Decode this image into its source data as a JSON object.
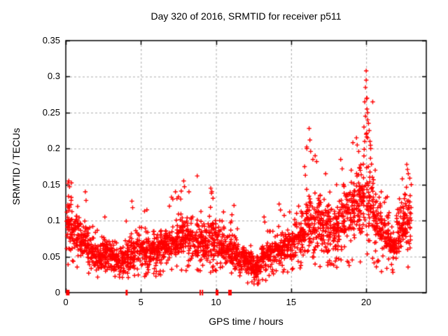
{
  "chart": {
    "title": "Day 320 of 2016, SRMTID for receiver p511",
    "xlabel": "GPS time / hours",
    "ylabel": "SRMTID / TECUs"
  },
  "chart_data": {
    "type": "scatter",
    "title": "Day 320 of 2016, SRMTID for receiver p511",
    "xlabel": "GPS time / hours",
    "ylabel": "SRMTID / TECUs",
    "xlim": [
      0,
      24
    ],
    "ylim": [
      0,
      0.35
    ],
    "xticks": [
      0,
      5,
      10,
      15,
      20
    ],
    "xtick_labels": [
      "0",
      "5",
      "10",
      "15",
      "20"
    ],
    "yticks": [
      0,
      0.05,
      0.1,
      0.15,
      0.2,
      0.25,
      0.3,
      0.35
    ],
    "ytick_labels": [
      "0",
      "0.05",
      "0.1",
      "0.15",
      "0.2",
      "0.25",
      "0.3",
      "0.35"
    ],
    "grid": "dashed, at every major tick, mirrored inward ticks on all four borders",
    "legend": "none",
    "marker": "+",
    "marker_color": "#ff0000",
    "grid_color": "#a9a9a9",
    "border_color": "#000000",
    "background_color": "#ffffff",
    "seed": 42,
    "density_bins_comment": "Each bin approximates the dense scatter cloud: [hourStart, hourEnd, nPoints, minTypical, modeTypical, maxObserved] in TECUs",
    "density_bins": [
      [
        0.05,
        0.4,
        50,
        0.05,
        0.095,
        0.158
      ],
      [
        0.4,
        1.0,
        60,
        0.045,
        0.08,
        0.145
      ],
      [
        1.0,
        1.5,
        55,
        0.035,
        0.065,
        0.12
      ],
      [
        1.5,
        2.0,
        55,
        0.03,
        0.055,
        0.1
      ],
      [
        2.0,
        2.5,
        55,
        0.028,
        0.05,
        0.095
      ],
      [
        2.5,
        3.0,
        55,
        0.028,
        0.052,
        0.105
      ],
      [
        3.0,
        3.5,
        55,
        0.024,
        0.048,
        0.08
      ],
      [
        3.5,
        4.0,
        50,
        0.022,
        0.045,
        0.085
      ],
      [
        4.0,
        4.5,
        50,
        0.028,
        0.05,
        0.1
      ],
      [
        4.5,
        5.0,
        50,
        0.03,
        0.058,
        0.11
      ],
      [
        5.0,
        5.5,
        55,
        0.032,
        0.06,
        0.115
      ],
      [
        5.5,
        6.0,
        50,
        0.03,
        0.055,
        0.09
      ],
      [
        6.0,
        6.5,
        55,
        0.033,
        0.06,
        0.1
      ],
      [
        6.5,
        7.0,
        55,
        0.038,
        0.065,
        0.115
      ],
      [
        7.0,
        7.5,
        55,
        0.04,
        0.07,
        0.14
      ],
      [
        7.5,
        8.0,
        55,
        0.042,
        0.08,
        0.152
      ],
      [
        8.0,
        8.5,
        50,
        0.04,
        0.075,
        0.135
      ],
      [
        8.5,
        9.0,
        50,
        0.038,
        0.068,
        0.12
      ],
      [
        9.0,
        9.5,
        55,
        0.04,
        0.07,
        0.13
      ],
      [
        9.5,
        10.0,
        55,
        0.04,
        0.075,
        0.142
      ],
      [
        10.0,
        10.5,
        50,
        0.038,
        0.065,
        0.11
      ],
      [
        10.5,
        11.0,
        50,
        0.035,
        0.06,
        0.105
      ],
      [
        11.0,
        11.5,
        55,
        0.03,
        0.055,
        0.112
      ],
      [
        11.5,
        12.0,
        55,
        0.025,
        0.045,
        0.08
      ],
      [
        12.0,
        12.5,
        55,
        0.02,
        0.04,
        0.07
      ],
      [
        12.5,
        13.0,
        55,
        0.016,
        0.035,
        0.065
      ],
      [
        13.0,
        13.5,
        55,
        0.025,
        0.05,
        0.098
      ],
      [
        13.5,
        14.0,
        50,
        0.03,
        0.055,
        0.09
      ],
      [
        14.0,
        14.5,
        55,
        0.035,
        0.06,
        0.115
      ],
      [
        14.5,
        15.0,
        55,
        0.038,
        0.065,
        0.108
      ],
      [
        15.0,
        15.5,
        50,
        0.04,
        0.07,
        0.12
      ],
      [
        15.5,
        16.0,
        55,
        0.045,
        0.08,
        0.165
      ],
      [
        16.0,
        16.5,
        55,
        0.05,
        0.1,
        0.205
      ],
      [
        16.5,
        17.0,
        55,
        0.05,
        0.1,
        0.19
      ],
      [
        17.0,
        17.5,
        55,
        0.05,
        0.09,
        0.158
      ],
      [
        17.5,
        18.0,
        50,
        0.05,
        0.088,
        0.15
      ],
      [
        18.0,
        18.5,
        55,
        0.05,
        0.095,
        0.175
      ],
      [
        18.5,
        19.0,
        55,
        0.055,
        0.105,
        0.168
      ],
      [
        19.0,
        19.5,
        55,
        0.06,
        0.115,
        0.21
      ],
      [
        19.5,
        20.0,
        60,
        0.06,
        0.125,
        0.26
      ],
      [
        20.0,
        20.5,
        60,
        0.06,
        0.125,
        0.27
      ],
      [
        20.5,
        21.0,
        55,
        0.05,
        0.1,
        0.168
      ],
      [
        21.0,
        21.5,
        55,
        0.04,
        0.078,
        0.138
      ],
      [
        21.5,
        22.0,
        55,
        0.032,
        0.06,
        0.115
      ],
      [
        22.0,
        22.5,
        55,
        0.04,
        0.088,
        0.155
      ],
      [
        22.5,
        23.0,
        55,
        0.05,
        0.1,
        0.172
      ]
    ],
    "outliers_comment": "Notable individual high points read off the plot: [hour, TECUs]",
    "outliers": [
      [
        0.15,
        0.152
      ],
      [
        0.2,
        0.155
      ],
      [
        0.25,
        0.147
      ],
      [
        1.3,
        0.14
      ],
      [
        1.35,
        0.128
      ],
      [
        2.6,
        0.105
      ],
      [
        4.4,
        0.127
      ],
      [
        4.45,
        0.118
      ],
      [
        5.4,
        0.115
      ],
      [
        6.9,
        0.12
      ],
      [
        7.3,
        0.14
      ],
      [
        7.5,
        0.133
      ],
      [
        7.85,
        0.155
      ],
      [
        7.9,
        0.147
      ],
      [
        8.2,
        0.14
      ],
      [
        8.75,
        0.162
      ],
      [
        9.65,
        0.145
      ],
      [
        9.7,
        0.138
      ],
      [
        9.8,
        0.131
      ],
      [
        10.5,
        0.112
      ],
      [
        11.2,
        0.121
      ],
      [
        13.2,
        0.105
      ],
      [
        13.25,
        0.098
      ],
      [
        14.2,
        0.123
      ],
      [
        14.9,
        0.112
      ],
      [
        15.5,
        0.12
      ],
      [
        15.9,
        0.175
      ],
      [
        15.95,
        0.163
      ],
      [
        16.05,
        0.2
      ],
      [
        16.2,
        0.228
      ],
      [
        16.25,
        0.212
      ],
      [
        16.3,
        0.196
      ],
      [
        16.45,
        0.185
      ],
      [
        16.6,
        0.19
      ],
      [
        16.7,
        0.182
      ],
      [
        17.3,
        0.165
      ],
      [
        18.3,
        0.185
      ],
      [
        18.4,
        0.172
      ],
      [
        19.0,
        0.17
      ],
      [
        19.35,
        0.215
      ],
      [
        19.4,
        0.205
      ],
      [
        19.5,
        0.196
      ],
      [
        19.85,
        0.23
      ],
      [
        19.9,
        0.265
      ],
      [
        19.9,
        0.21
      ],
      [
        19.95,
        0.285
      ],
      [
        19.95,
        0.245
      ],
      [
        20.0,
        0.308
      ],
      [
        20.0,
        0.295
      ],
      [
        20.0,
        0.22
      ],
      [
        20.05,
        0.27
      ],
      [
        20.05,
        0.255
      ],
      [
        20.1,
        0.25
      ],
      [
        20.1,
        0.24
      ],
      [
        20.1,
        0.215
      ],
      [
        20.15,
        0.235
      ],
      [
        20.2,
        0.225
      ],
      [
        20.25,
        0.21
      ],
      [
        20.3,
        0.2
      ],
      [
        20.6,
        0.17
      ],
      [
        21.0,
        0.14
      ],
      [
        22.4,
        0.158
      ],
      [
        22.7,
        0.178
      ],
      [
        22.75,
        0.171
      ],
      [
        22.8,
        0.165
      ],
      [
        22.9,
        0.159
      ],
      [
        23.0,
        0.15
      ]
    ],
    "zero_marks_comment": "Small solid red squares sitting on the y=0 axis line: [hour, widthPx]",
    "zero_marks": [
      [
        0.13,
        5
      ],
      [
        4.05,
        3
      ],
      [
        8.95,
        2
      ],
      [
        9.1,
        2
      ],
      [
        10.07,
        4
      ],
      [
        10.93,
        5
      ]
    ]
  }
}
